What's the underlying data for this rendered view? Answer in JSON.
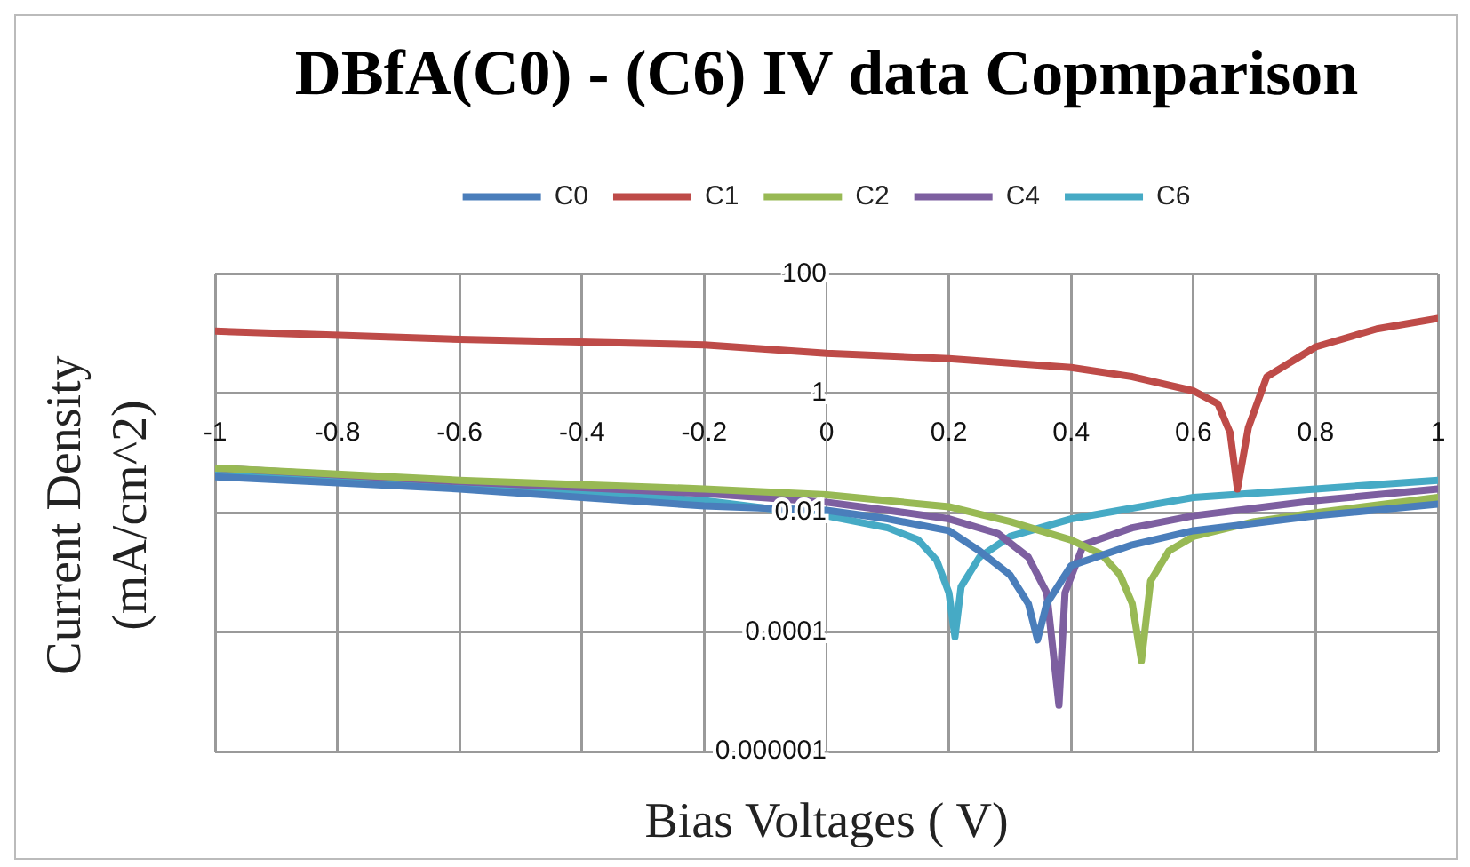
{
  "chart_data": {
    "type": "line",
    "title": "DBfA(C0) - (C6) IV data Copmparison",
    "xlabel": "Bias Voltages ( V)",
    "ylabel": "Current Density (mA/cm^2)",
    "log": "y",
    "grid": true,
    "legend": "top",
    "xlim": [
      -1,
      1
    ],
    "ylim": [
      1e-06,
      100
    ],
    "xticks": [
      -1,
      -0.8,
      -0.6,
      -0.4,
      -0.2,
      0,
      0.2,
      0.4,
      0.6,
      0.8,
      1
    ],
    "yticks": [
      {
        "value": 1e-06,
        "label": "0.000001"
      },
      {
        "value": 0.0001,
        "label": "0.0001"
      },
      0.01,
      1,
      100
    ],
    "series": [
      {
        "name": "C0",
        "color": "#4a7ebb",
        "x": [
          -1,
          -0.6,
          -0.2,
          0,
          0.1,
          0.2,
          0.25,
          0.3,
          0.33,
          0.345,
          0.36,
          0.4,
          0.5,
          0.6,
          0.8,
          1
        ],
        "values": [
          0.04,
          0.025,
          0.013,
          0.011,
          0.0079,
          0.005,
          0.0023,
          0.00091,
          0.0003,
          7.4e-05,
          0.0003,
          0.0013,
          0.0029,
          0.005,
          0.0089,
          0.014
        ]
      },
      {
        "name": "C1",
        "color": "#be4b48",
        "x": [
          -1,
          -0.6,
          -0.2,
          0,
          0.2,
          0.4,
          0.5,
          0.6,
          0.64,
          0.66,
          0.672,
          0.69,
          0.72,
          0.8,
          0.9,
          1
        ],
        "values": [
          11,
          8,
          6.5,
          4.7,
          3.8,
          2.7,
          1.9,
          1.1,
          0.67,
          0.22,
          0.025,
          0.27,
          1.9,
          6,
          12,
          18
        ]
      },
      {
        "name": "C2",
        "color": "#98b954",
        "x": [
          -1,
          -0.6,
          -0.2,
          0,
          0.2,
          0.3,
          0.4,
          0.45,
          0.48,
          0.5,
          0.515,
          0.53,
          0.56,
          0.6,
          0.7,
          0.8,
          1
        ],
        "values": [
          0.056,
          0.035,
          0.025,
          0.02,
          0.0126,
          0.0071,
          0.0035,
          0.002,
          0.00091,
          0.0003,
          3.3e-05,
          0.00072,
          0.0023,
          0.004,
          0.0071,
          0.01,
          0.018
        ]
      },
      {
        "name": "C4",
        "color": "#7d5fa0",
        "x": [
          -1,
          -0.6,
          -0.2,
          0,
          0.1,
          0.2,
          0.28,
          0.33,
          0.36,
          0.38,
          0.39,
          0.42,
          0.5,
          0.6,
          0.8,
          1
        ],
        "values": [
          0.056,
          0.033,
          0.021,
          0.015,
          0.011,
          0.0079,
          0.0045,
          0.0018,
          0.00046,
          6e-06,
          0.00046,
          0.0029,
          0.0056,
          0.0089,
          0.016,
          0.025
        ]
      },
      {
        "name": "C6",
        "color": "#46aac5",
        "x": [
          -1,
          -0.6,
          -0.2,
          0,
          0.1,
          0.15,
          0.18,
          0.2,
          0.21,
          0.22,
          0.25,
          0.3,
          0.4,
          0.6,
          0.8,
          1
        ],
        "values": [
          0.047,
          0.03,
          0.016,
          0.0089,
          0.0056,
          0.0035,
          0.0016,
          0.00046,
          8.3e-05,
          0.00058,
          0.0018,
          0.004,
          0.0079,
          0.018,
          0.025,
          0.035
        ]
      }
    ]
  }
}
